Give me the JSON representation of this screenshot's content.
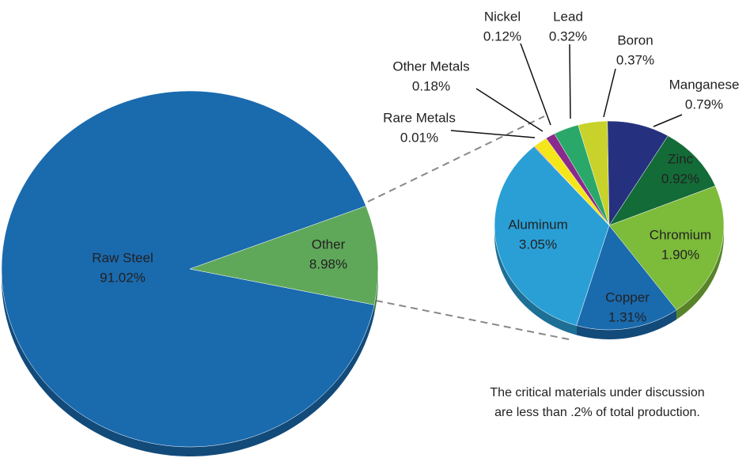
{
  "chart_data": [
    {
      "type": "pie",
      "categories": [
        "Raw Steel",
        "Other"
      ],
      "values": [
        91.02,
        8.98
      ],
      "value_labels": [
        "91.02%",
        "8.98%"
      ],
      "colors": [
        "#1a6aae",
        "#5fa85a"
      ]
    },
    {
      "type": "pie",
      "categories": [
        "Rare Metals",
        "Other Metals",
        "Nickel",
        "Lead",
        "Boron",
        "Manganese",
        "Zinc",
        "Chromium",
        "Copper",
        "Aluminum"
      ],
      "values": [
        0.01,
        0.18,
        0.12,
        0.32,
        0.37,
        0.79,
        0.92,
        1.9,
        1.31,
        3.05
      ],
      "value_labels": [
        "0.01%",
        "0.18%",
        "0.12%",
        "0.32%",
        "0.37%",
        "0.79%",
        "0.92%",
        "1.90%",
        "1.31%",
        "3.05%"
      ],
      "colors": [
        "#d9262a",
        "#f5e61a",
        "#8a2a8c",
        "#2aa86a",
        "#c8d22a",
        "#25317f",
        "#136b37",
        "#7dbb3a",
        "#1a6aae",
        "#2a9fd6"
      ],
      "annotation": [
        "The critical materials under discussion",
        "are less than .2% of total production."
      ]
    }
  ]
}
